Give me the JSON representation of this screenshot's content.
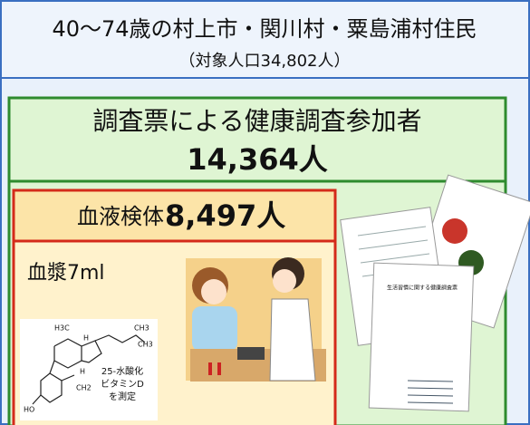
{
  "header": {
    "title": "40～74歳の村上市・関川村・粟島浦村住民",
    "subtitle": "（対象人口34,802人）"
  },
  "survey": {
    "label": "調査票による健康調査参加者",
    "count": "14,364人"
  },
  "blood": {
    "label": "血液検体",
    "count": "8,497人",
    "volume": "血漿7ml",
    "measurement": [
      "25-水酸化",
      "ビタミンD",
      "を測定"
    ],
    "structure_labels": [
      "H3C",
      "CH3",
      "CH3",
      "H",
      "H",
      "CH2",
      "HO"
    ]
  },
  "documents": {
    "title": "生活習慣に関する健康調査票"
  }
}
